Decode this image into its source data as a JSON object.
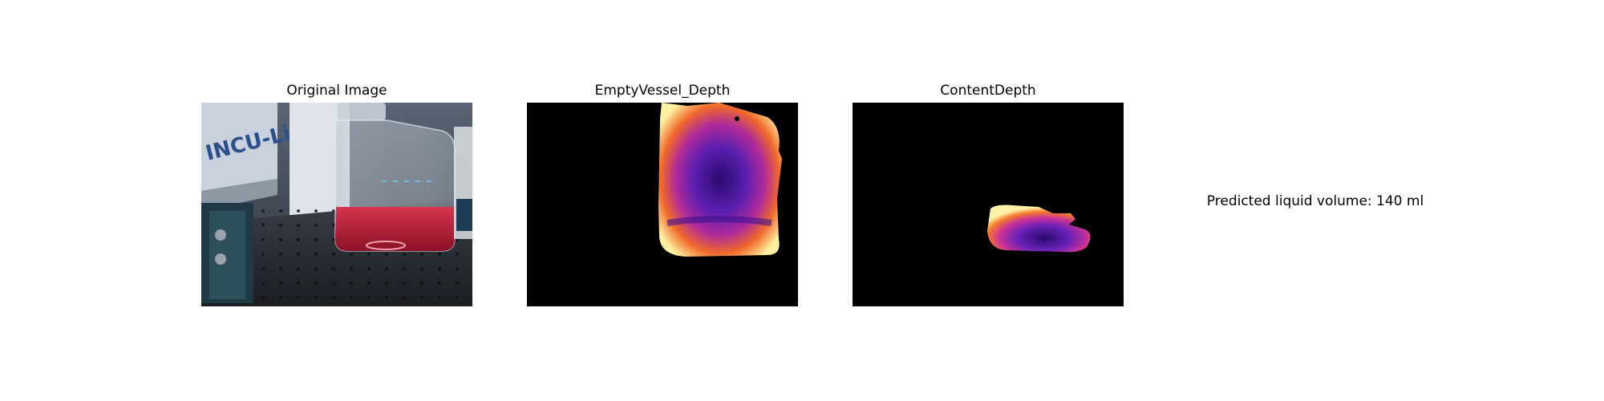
{
  "panels": [
    {
      "title": "Original Image"
    },
    {
      "title": "EmptyVessel_Depth"
    },
    {
      "title": "ContentDepth"
    }
  ],
  "photo": {
    "label_text": "INCU-Line"
  },
  "prediction": {
    "text": "Predicted liquid volume: 140 ml"
  }
}
